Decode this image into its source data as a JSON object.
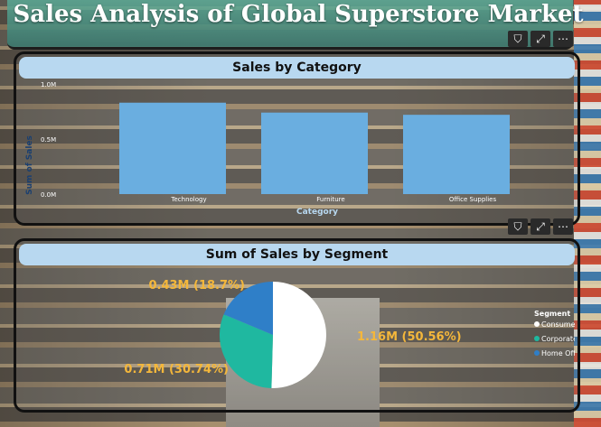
{
  "title": "Sales Analysis of Global Superstore Market",
  "visual_header": {
    "filter_icon": "filter-icon",
    "focus_icon": "focus-mode-icon",
    "more_icon": "more-options-icon",
    "filter_glyph": "⛉",
    "focus_glyph": "⤢",
    "more_glyph": "⋯"
  },
  "colors": {
    "card_header": "#b8d8f0",
    "bar": "#6aaee0",
    "consumer": "#ffffff",
    "corporate": "#1fb8a0",
    "home_office": "#2f7fc8",
    "label": "#f4b73b"
  },
  "sales_by_category": {
    "title": "Sales by Category",
    "chart_data": {
      "type": "bar",
      "title": "Sales by Category",
      "categories": [
        "Technology",
        "Furniture",
        "Office Supplies"
      ],
      "values": [
        0.83,
        0.74,
        0.72
      ],
      "xlabel": "Category",
      "ylabel": "Sum of Sales",
      "yticks": [
        "1.0M",
        "0.5M",
        "0.0M"
      ],
      "ylim": [
        0,
        1.0
      ],
      "grid": false
    }
  },
  "sales_by_segment": {
    "title": "Sum of Sales by Segment",
    "chart_data": {
      "type": "pie",
      "title": "Sum of Sales by Segment",
      "categories": [
        "Consumer",
        "Corporate",
        "Home Office"
      ],
      "values": [
        1.16,
        0.71,
        0.43
      ],
      "percent": [
        50.56,
        30.74,
        18.7
      ],
      "labels": [
        "1.16M (50.56%)",
        "0.71M (30.74%)",
        "0.43M (18.7%)"
      ],
      "legend_title": "Segment",
      "legend_position": "right"
    }
  }
}
